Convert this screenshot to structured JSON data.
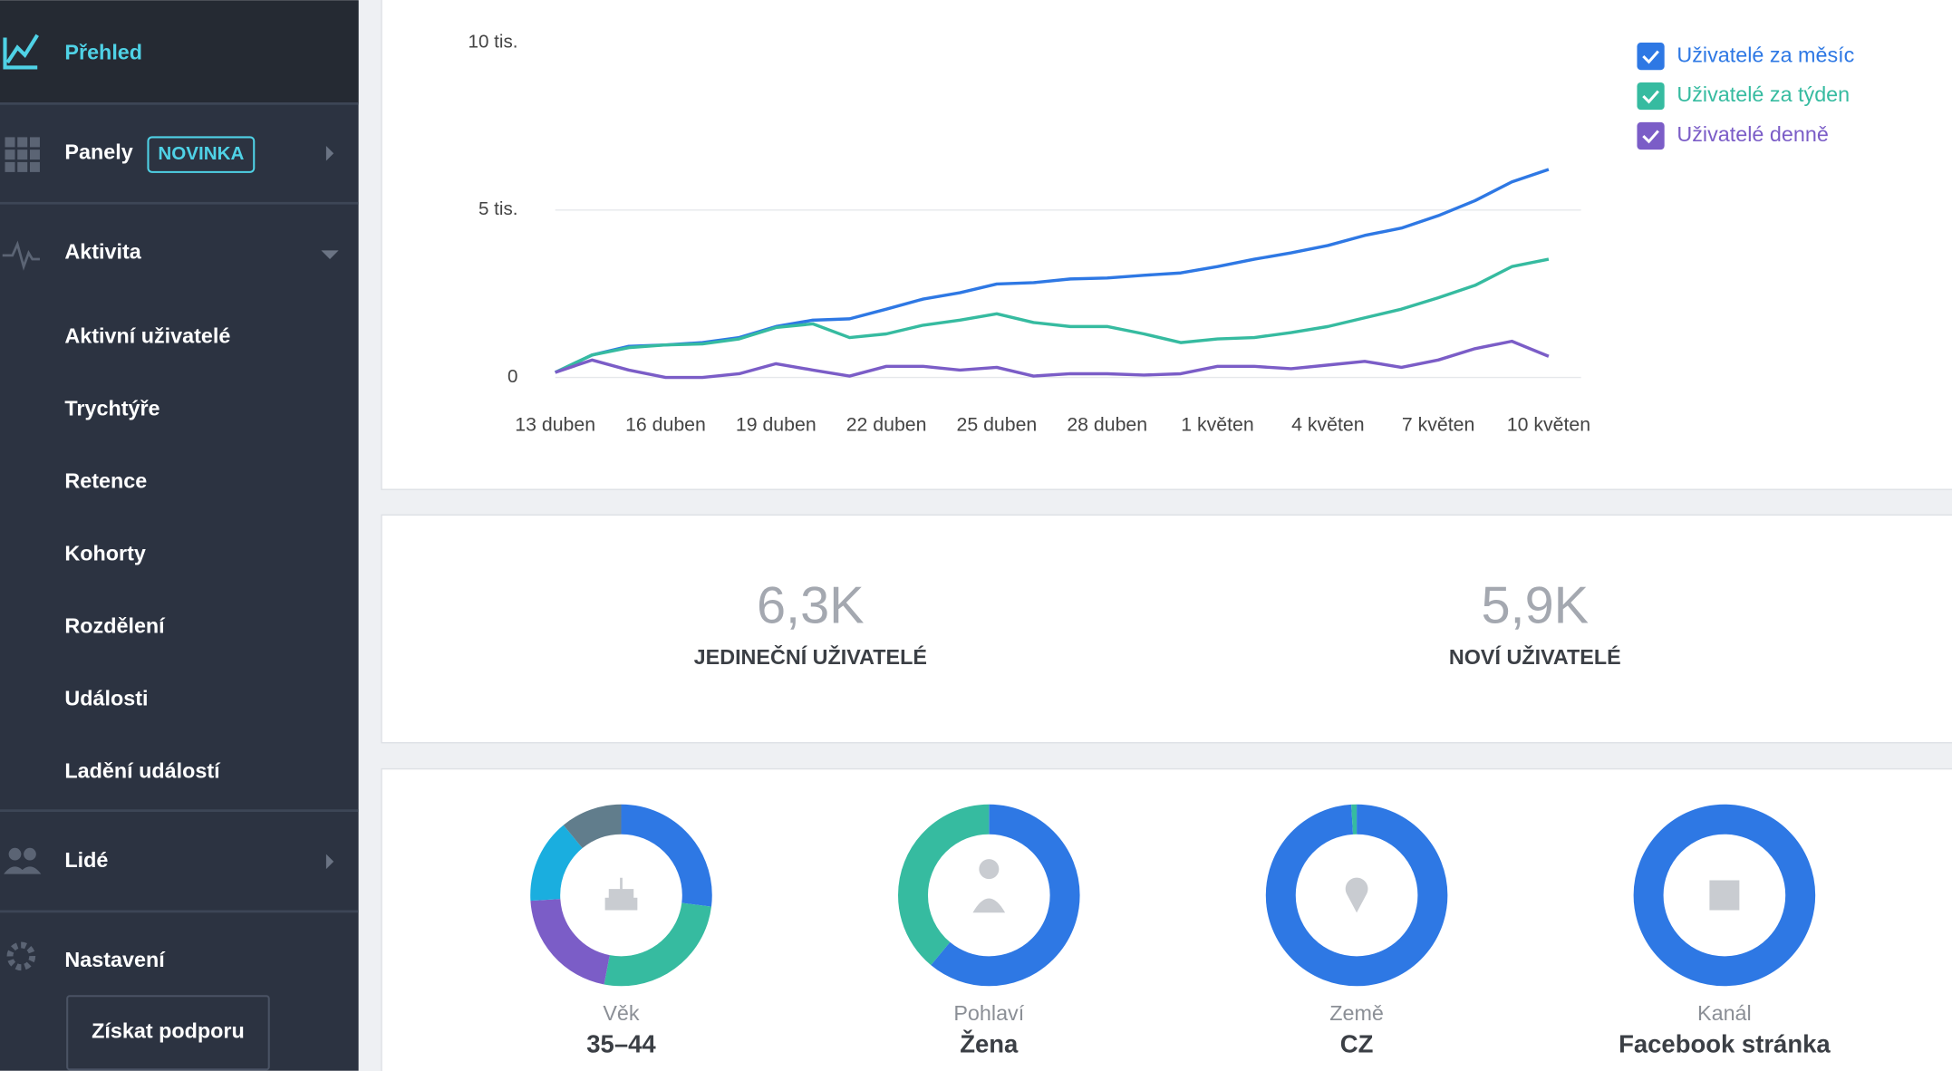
{
  "sidebar": {
    "items": [
      {
        "label": "Přehled"
      },
      {
        "label": "Panely",
        "badge": "NOVINKA"
      },
      {
        "label": "Aktivita"
      },
      {
        "label": "Lidé"
      },
      {
        "label": "Nastavení"
      }
    ],
    "sub_items": [
      "Aktivní uživatelé",
      "Trychtýře",
      "Retence",
      "Kohorty",
      "Rozdělení",
      "Události",
      "Ladění událostí"
    ],
    "support_button": "Získat podporu"
  },
  "chart_data": {
    "type": "line",
    "categories": [
      "13 duben",
      null,
      null,
      "16 duben",
      null,
      null,
      "19 duben",
      null,
      null,
      "22 duben",
      null,
      null,
      "25 duben",
      null,
      null,
      "28 duben",
      null,
      null,
      "1 květen",
      null,
      null,
      "4 květen",
      null,
      null,
      "7 květen",
      null,
      null,
      "10 květen"
    ],
    "ylim": [
      0,
      10000
    ],
    "yticks": [
      {
        "value": 0,
        "label": "0"
      },
      {
        "value": 5000,
        "label": "5 tis."
      },
      {
        "value": 10000,
        "label": "10 tis."
      }
    ],
    "grid": true,
    "legend": "top-right",
    "series": [
      {
        "name": "Uživatelé za měsíc",
        "color": "#2e78e4",
        "values": [
          150,
          670,
          930,
          970,
          1040,
          1190,
          1520,
          1710,
          1750,
          2040,
          2340,
          2530,
          2790,
          2830,
          2940,
          2970,
          3050,
          3120,
          3310,
          3530,
          3720,
          3940,
          4240,
          4460,
          4830,
          5280,
          5840,
          6210
        ]
      },
      {
        "name": "Uživatelé za týden",
        "color": "#36bba0",
        "values": [
          150,
          670,
          890,
          970,
          1000,
          1150,
          1490,
          1600,
          1190,
          1300,
          1560,
          1710,
          1900,
          1640,
          1520,
          1520,
          1300,
          1040,
          1150,
          1190,
          1340,
          1520,
          1780,
          2040,
          2380,
          2750,
          3310,
          3530
        ]
      },
      {
        "name": "Uživatelé denně",
        "color": "#7b5dc7",
        "values": [
          150,
          520,
          220,
          0,
          0,
          110,
          410,
          220,
          40,
          330,
          330,
          220,
          300,
          40,
          110,
          110,
          70,
          110,
          330,
          330,
          260,
          370,
          480,
          300,
          520,
          860,
          1080,
          630
        ]
      }
    ]
  },
  "stats": [
    {
      "value": "6,3K",
      "label": "JEDINEČNÍ UŽIVATELÉ"
    },
    {
      "value": "5,9K",
      "label": "NOVÍ UŽIVATELÉ"
    }
  ],
  "donuts": [
    {
      "title": "Věk",
      "top_value": "35–44",
      "segments": [
        {
          "color": "#2e78e4",
          "value": 27
        },
        {
          "color": "#36bba0",
          "value": 26
        },
        {
          "color": "#7b5dc7",
          "value": 21
        },
        {
          "color": "#1aaedf",
          "value": 15
        },
        {
          "color": "#617d8c",
          "value": 11
        }
      ]
    },
    {
      "title": "Pohlaví",
      "top_value": "Žena",
      "segments": [
        {
          "color": "#2e78e4",
          "value": 61
        },
        {
          "color": "#36bba0",
          "value": 39
        }
      ]
    },
    {
      "title": "Země",
      "top_value": "CZ",
      "segments": [
        {
          "color": "#2e78e4",
          "value": 99
        },
        {
          "color": "#36bba0",
          "value": 1
        }
      ]
    },
    {
      "title": "Kanál",
      "top_value": "Facebook stránka",
      "segments": [
        {
          "color": "#2e78e4",
          "value": 100
        }
      ]
    }
  ]
}
